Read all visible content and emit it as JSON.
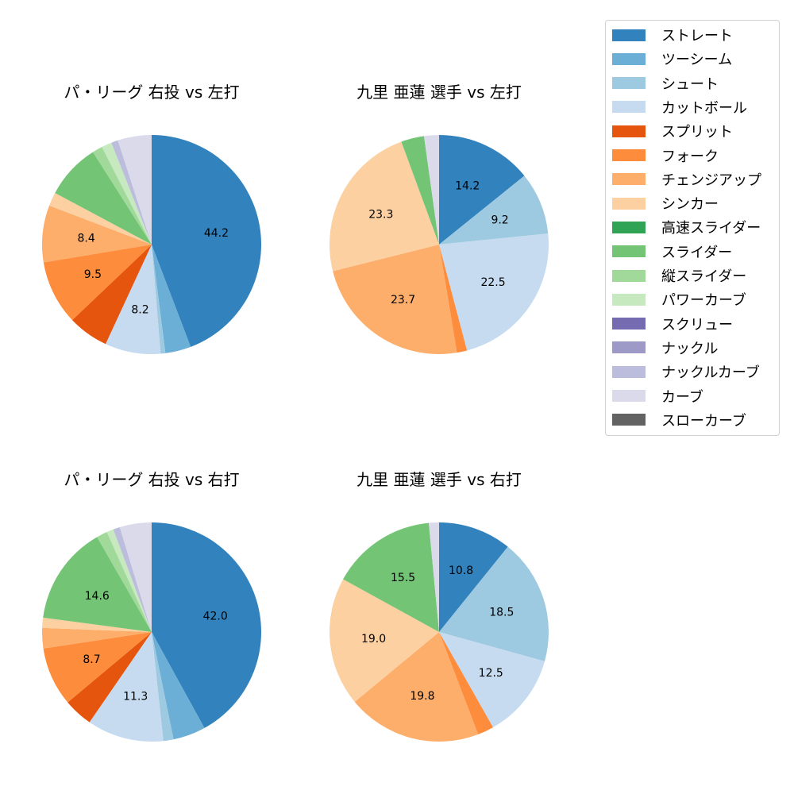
{
  "chart_data": [
    {
      "type": "pie",
      "title": "パ・リーグ 右投 vs 左打",
      "categories": [
        "ストレート",
        "ツーシーム",
        "シュート",
        "カットボール",
        "スプリット",
        "フォーク",
        "チェンジアップ",
        "シンカー",
        "スライダー",
        "縦スライダー",
        "パワーカーブ",
        "ナックルカーブ",
        "カーブ"
      ],
      "values": [
        44.2,
        3.8,
        0.7,
        8.2,
        6.0,
        9.5,
        8.4,
        2.0,
        8.2,
        1.5,
        1.5,
        1.0,
        5.0
      ],
      "labels_shown": [
        "44.2",
        "",
        "",
        "8.2",
        "",
        "9.5",
        "8.4",
        "",
        "",
        "",
        "",
        "",
        ""
      ]
    },
    {
      "type": "pie",
      "title": "九里 亜蓮 選手 vs 左打",
      "categories": [
        "ストレート",
        "シュート",
        "カットボール",
        "フォーク",
        "チェンジアップ",
        "シンカー",
        "スライダー",
        "カーブ"
      ],
      "values": [
        14.2,
        9.2,
        22.5,
        1.5,
        23.7,
        23.3,
        3.4,
        2.2
      ],
      "labels_shown": [
        "14.2",
        "9.2",
        "22.5",
        "",
        "23.7",
        "23.3",
        "",
        ""
      ]
    },
    {
      "type": "pie",
      "title": "パ・リーグ 右投 vs 右打",
      "categories": [
        "ストレート",
        "ツーシーム",
        "シュート",
        "カットボール",
        "スプリット",
        "フォーク",
        "チェンジアップ",
        "シンカー",
        "スライダー",
        "縦スライダー",
        "パワーカーブ",
        "ナックルカーブ",
        "カーブ"
      ],
      "values": [
        42.0,
        4.8,
        1.5,
        11.3,
        4.3,
        8.7,
        3.0,
        1.5,
        14.6,
        1.6,
        1.0,
        1.0,
        4.7
      ],
      "labels_shown": [
        "42.0",
        "",
        "",
        "11.3",
        "",
        "8.7",
        "",
        "",
        "14.6",
        "",
        "",
        "",
        ""
      ]
    },
    {
      "type": "pie",
      "title": "九里 亜蓮 選手 vs 右打",
      "categories": [
        "ストレート",
        "シュート",
        "カットボール",
        "フォーク",
        "チェンジアップ",
        "シンカー",
        "スライダー",
        "カーブ"
      ],
      "values": [
        10.8,
        18.5,
        12.5,
        2.4,
        19.8,
        19.0,
        15.5,
        1.5
      ],
      "labels_shown": [
        "10.8",
        "18.5",
        "12.5",
        "",
        "19.8",
        "19.0",
        "15.5",
        ""
      ]
    }
  ],
  "colors": {
    "ストレート": "#3182bd",
    "ツーシーム": "#6baed6",
    "シュート": "#9ecae1",
    "カットボール": "#c6dbef",
    "スプリット": "#e6550d",
    "フォーク": "#fd8d3c",
    "チェンジアップ": "#fdae6b",
    "シンカー": "#fdd0a2",
    "高速スライダー": "#31a354",
    "スライダー": "#74c476",
    "縦スライダー": "#a1d99b",
    "パワーカーブ": "#c7e9c0",
    "スクリュー": "#756bb1",
    "ナックル": "#9e9ac8",
    "ナックルカーブ": "#bcbddc",
    "カーブ": "#dadaeb",
    "スローカーブ": "#636363"
  },
  "legend": {
    "items": [
      {
        "label": "ストレート",
        "color": "#3182bd"
      },
      {
        "label": "ツーシーム",
        "color": "#6baed6"
      },
      {
        "label": "シュート",
        "color": "#9ecae1"
      },
      {
        "label": "カットボール",
        "color": "#c6dbef"
      },
      {
        "label": "スプリット",
        "color": "#e6550d"
      },
      {
        "label": "フォーク",
        "color": "#fd8d3c"
      },
      {
        "label": "チェンジアップ",
        "color": "#fdae6b"
      },
      {
        "label": "シンカー",
        "color": "#fdd0a2"
      },
      {
        "label": "高速スライダー",
        "color": "#31a354"
      },
      {
        "label": "スライダー",
        "color": "#74c476"
      },
      {
        "label": "縦スライダー",
        "color": "#a1d99b"
      },
      {
        "label": "パワーカーブ",
        "color": "#c7e9c0"
      },
      {
        "label": "スクリュー",
        "color": "#756bb1"
      },
      {
        "label": "ナックル",
        "color": "#9e9ac8"
      },
      {
        "label": "ナックルカーブ",
        "color": "#bcbddc"
      },
      {
        "label": "カーブ",
        "color": "#dadaeb"
      },
      {
        "label": "スローカーブ",
        "color": "#636363"
      }
    ]
  }
}
